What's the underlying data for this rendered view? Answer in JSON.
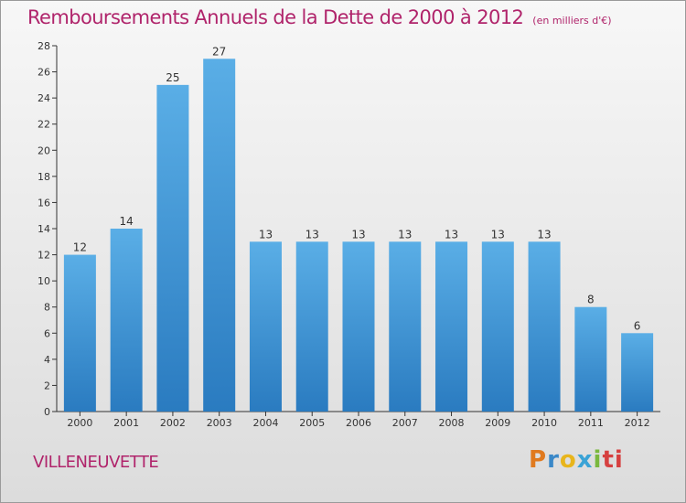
{
  "header": {
    "title": "Remboursements Annuels de la Dette de 2000 à 2012",
    "unit": "(en milliers d'€)"
  },
  "footer": {
    "city": "VILLENEUVETTE",
    "logo_letters": [
      "P",
      "r",
      "o",
      "x",
      "i",
      "ti"
    ]
  },
  "colors": {
    "title": "#b0246b",
    "bar_top": "#5aaee6",
    "bar_bottom": "#2a7bc0"
  },
  "chart_data": {
    "type": "bar",
    "title": "Remboursements Annuels de la Dette de 2000 à 2012",
    "subtitle": "(en milliers d'€)",
    "categories": [
      "2000",
      "2001",
      "2002",
      "2003",
      "2004",
      "2005",
      "2006",
      "2007",
      "2008",
      "2009",
      "2010",
      "2011",
      "2012"
    ],
    "values": [
      12,
      14,
      25,
      27,
      13,
      13,
      13,
      13,
      13,
      13,
      13,
      8,
      6
    ],
    "ylim": [
      0,
      28
    ],
    "yticks": [
      0,
      2,
      4,
      6,
      8,
      10,
      12,
      14,
      16,
      18,
      20,
      22,
      24,
      26,
      28
    ],
    "grid": false,
    "legend": "none"
  }
}
